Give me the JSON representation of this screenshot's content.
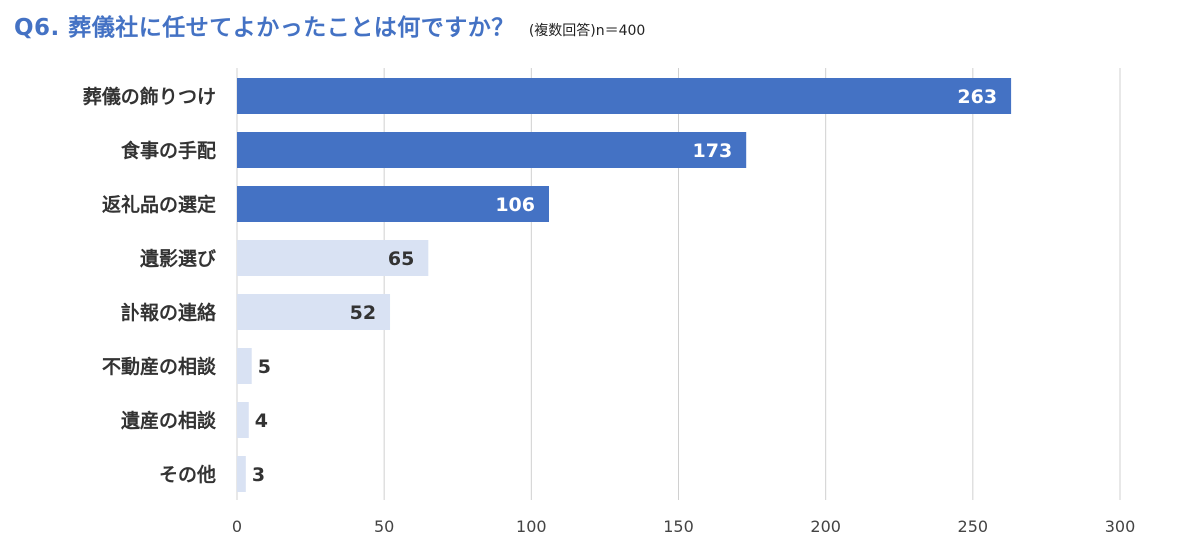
{
  "header": {
    "title": "Q6. 葬儀社に任せてよかったことは何ですか？",
    "subtitle": "(複数回答)n＝400"
  },
  "colors": {
    "highlight_bar": "#4472c4",
    "normal_bar": "#d9e2f3",
    "highlight_value_text": "#ffffff",
    "normal_value_text": "#333333",
    "grid": "#d0d0d0"
  },
  "chart_data": {
    "type": "bar",
    "orientation": "horizontal",
    "title": "Q6. 葬儀社に任せてよかったことは何ですか？",
    "subtitle": "(複数回答)n＝400",
    "categories": [
      "葬儀の飾りつけ",
      "食事の手配",
      "返礼品の選定",
      "遺影選び",
      "訃報の連絡",
      "不動産の相談",
      "遺産の相談",
      "その他"
    ],
    "values": [
      263,
      173,
      106,
      65,
      52,
      5,
      4,
      3
    ],
    "highlighted": [
      true,
      true,
      true,
      false,
      false,
      false,
      false,
      false
    ],
    "xlim": [
      0,
      300
    ],
    "xticks": [
      0,
      50,
      100,
      150,
      200,
      250,
      300
    ],
    "grid": true,
    "data_labels": true
  }
}
